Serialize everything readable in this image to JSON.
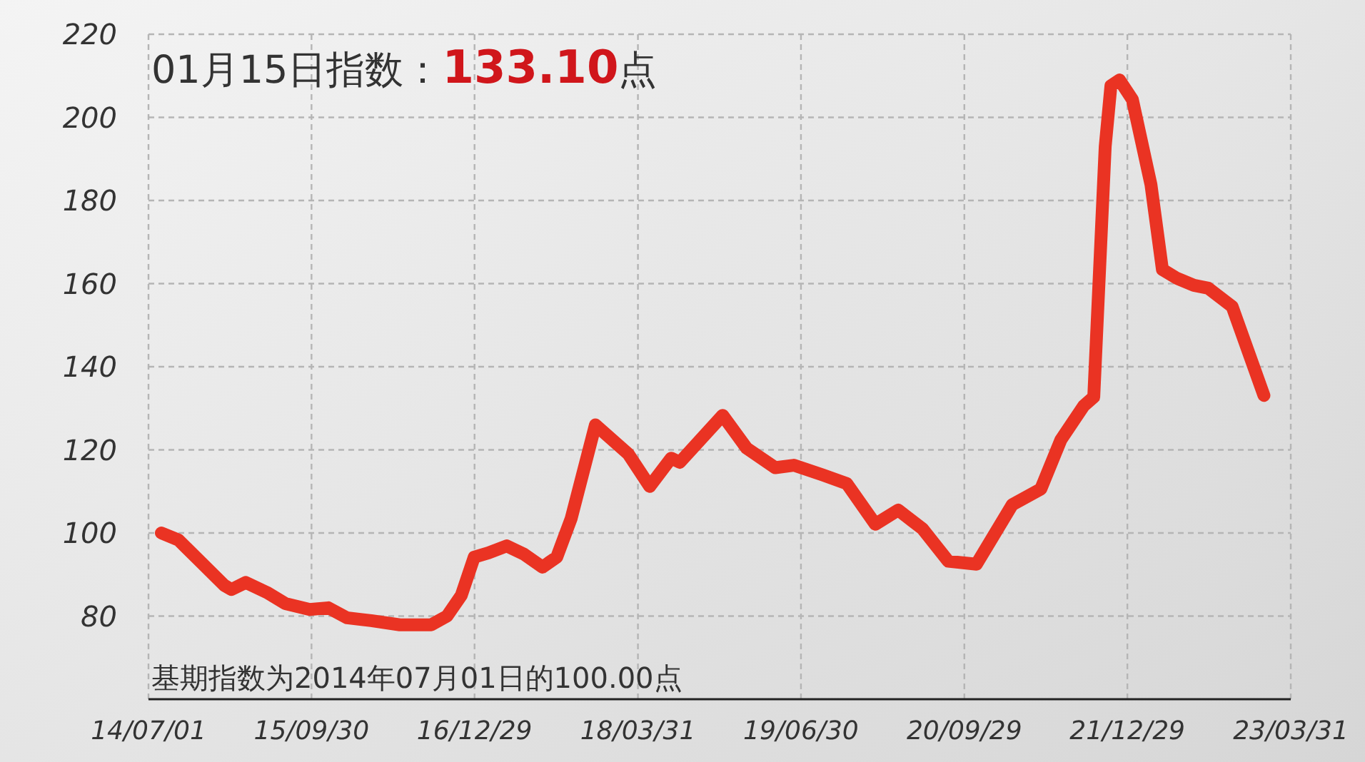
{
  "chart_data": {
    "type": "line",
    "title": "01月15日指数：133.10点",
    "annotations": [
      "基期指数为2014年07月01日的100.00点"
    ],
    "series": [
      {
        "color": "#ea3323",
        "x": [
          "2014-08-06",
          "2014-09-23",
          "2014-11-22",
          "2015-01-29",
          "2015-02-18",
          "2015-03-30",
          "2015-05-28",
          "2015-07-19",
          "2015-09-25",
          "2015-11-16",
          "2016-01-07",
          "2016-03-15",
          "2016-06-03",
          "2016-08-30",
          "2016-10-13",
          "2016-11-22",
          "2016-12-28",
          "2017-02-06",
          "2017-03-29",
          "2017-05-16",
          "2017-07-07",
          "2017-08-16",
          "2017-09-25",
          "2017-12-02",
          "2018-03-04",
          "2018-05-03",
          "2018-07-02",
          "2018-07-26",
          "2018-11-23",
          "2019-01-29",
          "2019-04-19",
          "2019-06-10",
          "2019-08-29",
          "2019-11-05",
          "2020-01-24",
          "2020-03-28",
          "2020-06-04",
          "2020-08-15",
          "2020-11-02",
          "2021-02-10",
          "2021-05-01",
          "2021-06-26",
          "2021-08-29",
          "2021-09-26",
          "2021-10-28",
          "2021-11-13",
          "2021-12-07",
          "2022-01-12",
          "2022-03-05",
          "2022-04-06",
          "2022-05-16",
          "2022-07-03",
          "2022-08-12",
          "2022-10-18",
          "2023-01-15"
        ],
        "values": [
          100,
          98.3,
          93.2,
          87.4,
          86.4,
          88.1,
          85.7,
          83,
          81.6,
          82,
          79.6,
          78.9,
          77.9,
          77.9,
          80,
          85,
          94.2,
          95.2,
          96.9,
          94.9,
          91.8,
          94.2,
          103.4,
          126,
          119,
          111.2,
          118,
          117,
          128.3,
          120.4,
          115.7,
          116.3,
          114,
          111.9,
          102.1,
          105.5,
          101,
          93.2,
          92.5,
          106.8,
          110.6,
          122.4,
          130.6,
          132.7,
          193,
          207.6,
          209,
          204.3,
          183.8,
          163.4,
          161.3,
          159.6,
          158.9,
          154.5,
          133.1
        ]
      }
    ],
    "xlim": [
      "2014-07-01",
      "2023-03-31"
    ],
    "xticks": [
      {
        "value": "2014-07-01",
        "label": "14/07/01"
      },
      {
        "value": "2015-09-30",
        "label": "15/09/30"
      },
      {
        "value": "2016-12-29",
        "label": "16/12/29"
      },
      {
        "value": "2018-03-31",
        "label": "18/03/31"
      },
      {
        "value": "2019-06-30",
        "label": "19/06/30"
      },
      {
        "value": "2020-09-29",
        "label": "20/09/29"
      },
      {
        "value": "2021-12-29",
        "label": "21/12/29"
      },
      {
        "value": "2023-03-31",
        "label": "23/03/31"
      }
    ],
    "ylim": [
      60,
      220
    ],
    "yticks": [
      80,
      100,
      120,
      140,
      160,
      180,
      200,
      220
    ],
    "grid": true,
    "line_style": "solid"
  }
}
